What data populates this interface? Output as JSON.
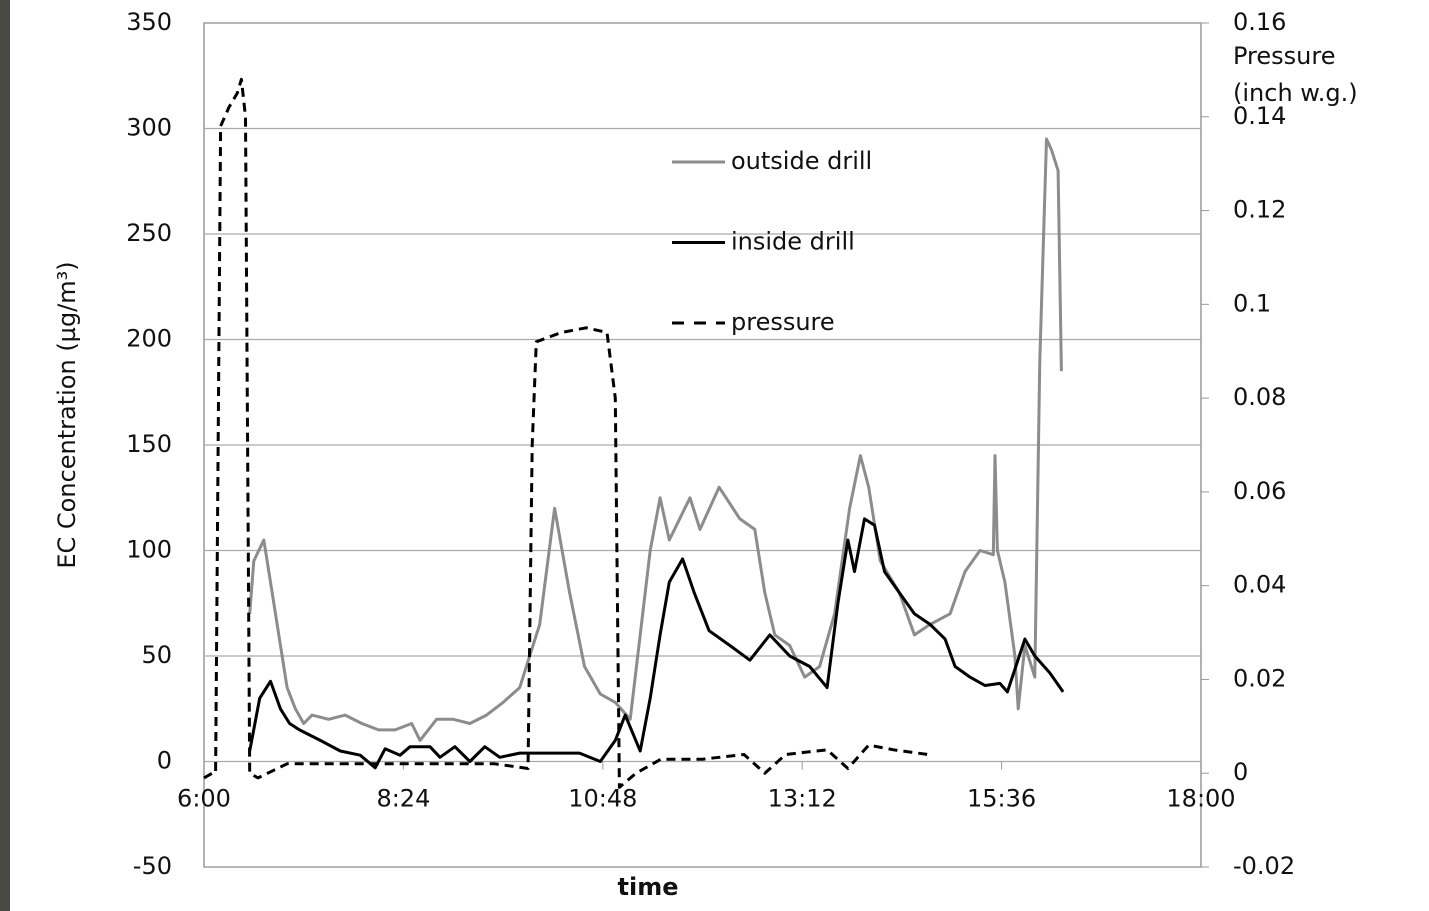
{
  "chart_data": {
    "type": "line",
    "x_label": "time",
    "y_label": "EC Concentration (µg/m³)",
    "y2_label": [
      "Pressure",
      "(inch w.g.)"
    ],
    "xlim": [
      6,
      18
    ],
    "xticks": [
      {
        "value": 6,
        "label": "6:00"
      },
      {
        "value": 8.4,
        "label": "8:24"
      },
      {
        "value": 10.8,
        "label": "10:48"
      },
      {
        "value": 13.2,
        "label": "13:12"
      },
      {
        "value": 15.6,
        "label": "15:36"
      },
      {
        "value": 18,
        "label": "18:00"
      }
    ],
    "ylim": [
      -50,
      350
    ],
    "yticks": [
      -50,
      0,
      50,
      100,
      150,
      200,
      250,
      300,
      350
    ],
    "y2lim": [
      -0.02,
      0.16
    ],
    "y2ticks": [
      -0.02,
      0,
      0.02,
      0.04,
      0.06,
      0.08,
      0.1,
      0.12,
      0.14,
      0.16
    ],
    "grid": true,
    "series": [
      {
        "name": "outside drill",
        "color": "#8c8c8c",
        "dash": false,
        "x": [
          6.55,
          6.6,
          6.72,
          6.8,
          6.9,
          7.0,
          7.1,
          7.2,
          7.3,
          7.5,
          7.7,
          7.9,
          8.1,
          8.3,
          8.5,
          8.6,
          8.8,
          9.0,
          9.2,
          9.4,
          9.6,
          9.8,
          10.04,
          10.22,
          10.4,
          10.58,
          10.77,
          10.95,
          11.13,
          11.25,
          11.37,
          11.49,
          11.6,
          11.85,
          11.97,
          12.2,
          12.45,
          12.63,
          12.75,
          12.87,
          13.05,
          13.23,
          13.41,
          13.59,
          13.77,
          13.9,
          14.0,
          14.14,
          14.37,
          14.55,
          14.74,
          14.98,
          15.16,
          15.34,
          15.5,
          15.52,
          15.55,
          15.64,
          15.76,
          15.8,
          15.88,
          16.0,
          16.06,
          16.14,
          16.2,
          16.28,
          16.32
        ],
        "values": [
          70,
          95,
          105,
          85,
          60,
          35,
          25,
          18,
          22,
          20,
          22,
          18,
          15,
          15,
          18,
          10,
          20,
          20,
          18,
          22,
          28,
          35,
          65,
          120,
          80,
          45,
          32,
          28,
          20,
          60,
          100,
          125,
          105,
          125,
          110,
          130,
          115,
          110,
          80,
          60,
          55,
          40,
          45,
          70,
          120,
          145,
          130,
          95,
          80,
          60,
          65,
          70,
          90,
          100,
          98,
          145,
          100,
          85,
          50,
          25,
          55,
          40,
          190,
          295,
          290,
          280,
          185
        ]
      },
      {
        "name": "inside drill",
        "color": "#000000",
        "dash": false,
        "x": [
          6.55,
          6.67,
          6.8,
          6.92,
          7.03,
          7.15,
          7.4,
          7.64,
          7.88,
          8.06,
          8.18,
          8.36,
          8.48,
          8.72,
          8.84,
          9.02,
          9.2,
          9.38,
          9.56,
          9.8,
          10.04,
          10.52,
          10.77,
          10.95,
          11.07,
          11.25,
          11.37,
          11.49,
          11.6,
          11.76,
          11.9,
          12.08,
          12.33,
          12.57,
          12.81,
          13.05,
          13.29,
          13.5,
          13.63,
          13.75,
          13.83,
          13.95,
          14.07,
          14.19,
          14.37,
          14.55,
          14.74,
          14.92,
          15.04,
          15.22,
          15.4,
          15.58,
          15.67,
          15.88,
          16.0,
          16.18,
          16.34
        ],
        "values": [
          5,
          30,
          38,
          25,
          18,
          15,
          10,
          5,
          3,
          -3,
          6,
          3,
          7,
          7,
          2,
          7,
          0,
          7,
          2,
          4,
          4,
          4,
          0,
          10,
          22,
          5,
          30,
          60,
          85,
          96,
          80,
          62,
          55,
          48,
          60,
          50,
          45,
          35,
          75,
          105,
          90,
          115,
          112,
          90,
          80,
          70,
          65,
          58,
          45,
          40,
          36,
          37,
          33,
          58,
          50,
          42,
          33
        ]
      },
      {
        "name": "pressure",
        "color": "#000000",
        "dash": true,
        "axis": "y2",
        "x": [
          6.0,
          6.1,
          6.14,
          6.2,
          6.3,
          6.4,
          6.45,
          6.5,
          6.55,
          6.65,
          7.0,
          7.5,
          8.0,
          8.5,
          9.0,
          9.5,
          9.9,
          9.95,
          10.0,
          10.3,
          10.6,
          10.85,
          10.95,
          11.0,
          11.2,
          11.5,
          12.0,
          12.5,
          12.75,
          13.0,
          13.5,
          13.75,
          14.0,
          14.3,
          14.71
        ],
        "values": [
          -0.001,
          0.0,
          0.0,
          0.138,
          0.142,
          0.145,
          0.148,
          0.14,
          0.0,
          -0.001,
          0.002,
          0.002,
          0.002,
          0.002,
          0.002,
          0.002,
          0.001,
          0.07,
          0.092,
          0.094,
          0.095,
          0.094,
          0.08,
          -0.003,
          0.0,
          0.003,
          0.003,
          0.004,
          0.0,
          0.004,
          0.005,
          0.001,
          0.006,
          0.005,
          0.004
        ]
      }
    ]
  }
}
